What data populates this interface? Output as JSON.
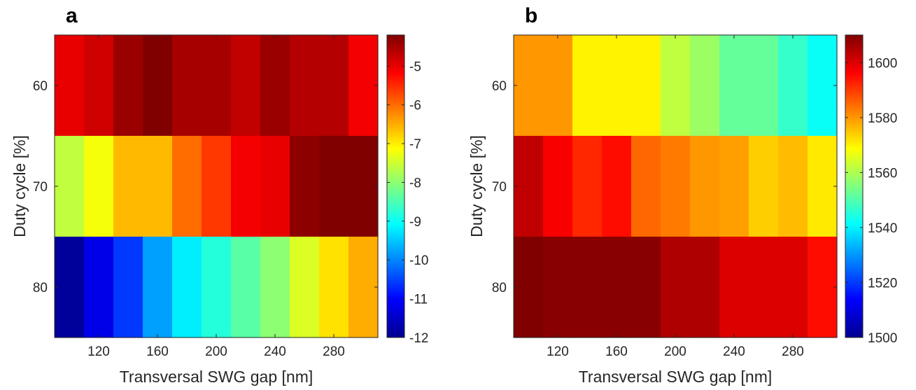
{
  "chart_data": [
    {
      "type": "heatmap",
      "panel_label": "a",
      "xlabel": "Transversal SWG gap [nm]",
      "ylabel": "Duty cycle [%]",
      "x": [
        100,
        120,
        140,
        160,
        180,
        200,
        220,
        240,
        260,
        280,
        300
      ],
      "y": [
        60,
        70,
        80
      ],
      "x_ticks": [
        120,
        160,
        200,
        240,
        280
      ],
      "y_ticks": [
        60,
        70,
        80
      ],
      "values": [
        [
          -5.0,
          -4.8,
          -4.4,
          -4.1,
          -4.5,
          -4.5,
          -4.7,
          -4.4,
          -4.6,
          -4.6,
          -5.1
        ],
        [
          -7.6,
          -7.2,
          -6.6,
          -6.6,
          -6.0,
          -5.6,
          -5.1,
          -5.0,
          -4.3,
          -4.2,
          -4.2
        ],
        [
          -11.8,
          -11.2,
          -10.6,
          -9.8,
          -9.2,
          -8.8,
          -8.4,
          -8.0,
          -7.4,
          -6.9,
          -6.5
        ]
      ],
      "colorbar": {
        "min": -12,
        "max": -4.2,
        "ticks": [
          -12,
          -11,
          -10,
          -9,
          -8,
          -7,
          -6,
          -5
        ],
        "colormap": "jet"
      },
      "grid": false
    },
    {
      "type": "heatmap",
      "panel_label": "b",
      "xlabel": "Transversal SWG gap [nm]",
      "ylabel": "Duty cycle [%]",
      "x": [
        100,
        120,
        140,
        160,
        180,
        200,
        220,
        240,
        260,
        280,
        300
      ],
      "y": [
        60,
        70,
        80
      ],
      "x_ticks": [
        120,
        160,
        200,
        240,
        280
      ],
      "y_ticks": [
        60,
        70,
        80
      ],
      "values": [
        [
          1580,
          1580,
          1570,
          1570,
          1570,
          1562,
          1558,
          1552,
          1552,
          1547,
          1542
        ],
        [
          1603,
          1597,
          1592,
          1595,
          1585,
          1583,
          1580,
          1579,
          1574,
          1576,
          1571
        ],
        [
          1612,
          1609,
          1609,
          1609,
          1609,
          1605,
          1605,
          1600,
          1600,
          1600,
          1595
        ]
      ],
      "colorbar": {
        "min": 1500,
        "max": 1610,
        "ticks": [
          1500,
          1520,
          1540,
          1560,
          1580,
          1600
        ],
        "colormap": "jet"
      },
      "grid": false
    }
  ]
}
